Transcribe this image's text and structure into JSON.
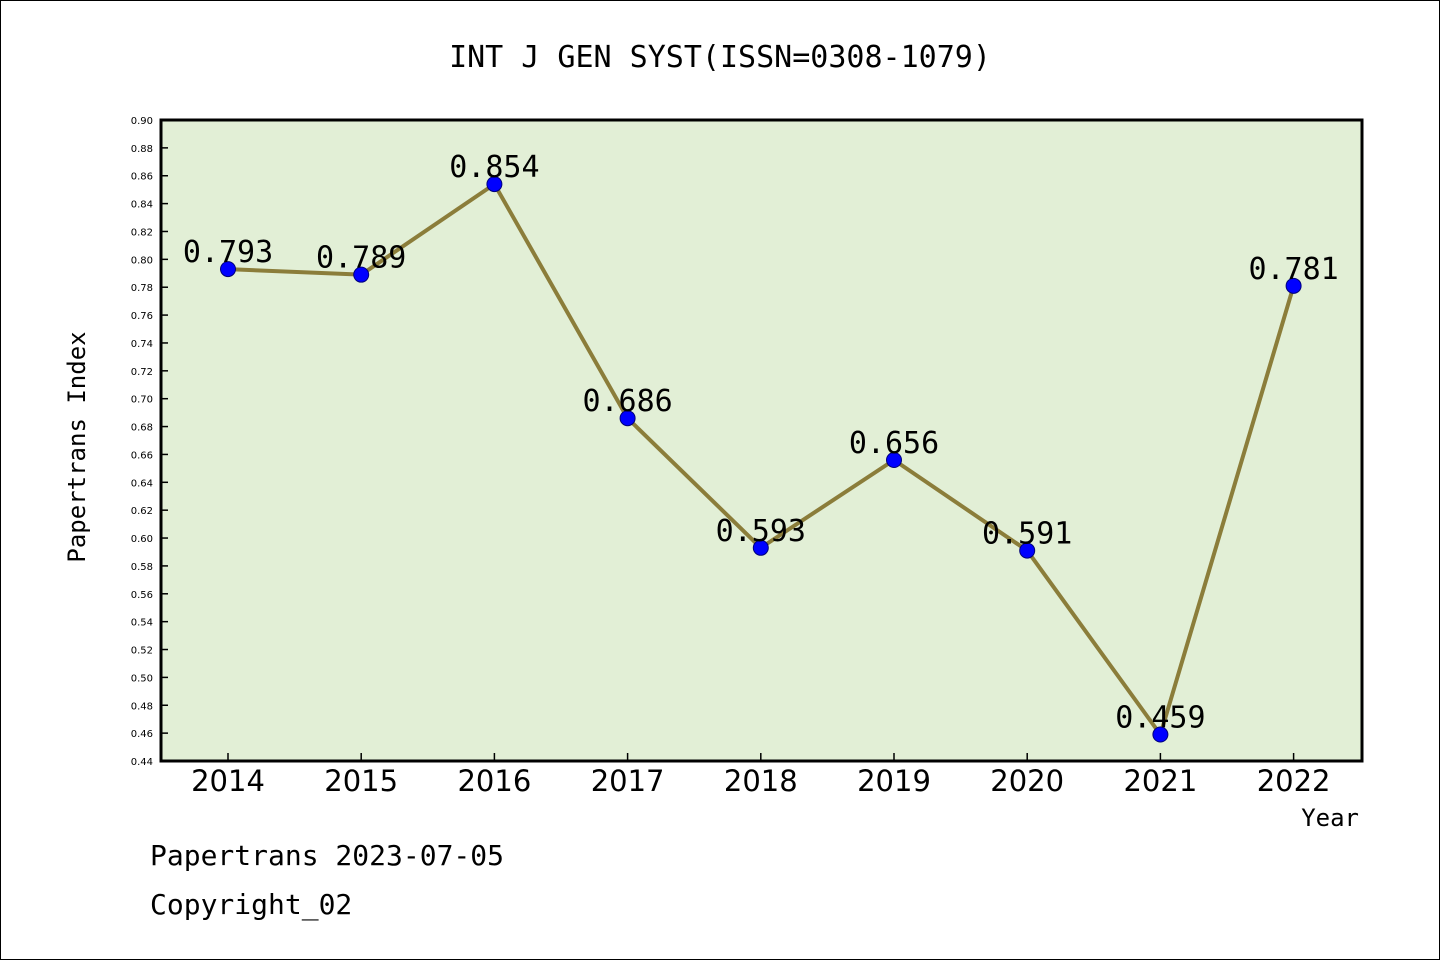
{
  "chart_data": {
    "type": "line",
    "title": "INT J GEN SYST(ISSN=0308-1079)",
    "xlabel": "Year",
    "ylabel": "Papertrans Index",
    "categories": [
      "2014",
      "2015",
      "2016",
      "2017",
      "2018",
      "2019",
      "2020",
      "2021",
      "2022"
    ],
    "series": [
      {
        "values": [
          0.793,
          0.789,
          0.854,
          0.686,
          0.593,
          0.656,
          0.591,
          0.459,
          0.781
        ],
        "data_labels": [
          "0.793",
          "0.789",
          "0.854",
          "0.686",
          "0.593",
          "0.656",
          "0.591",
          "0.459",
          "0.781"
        ]
      }
    ],
    "ylim": [
      0.44,
      0.9
    ],
    "yticks": [
      "0.44",
      "0.46",
      "0.48",
      "0.50",
      "0.52",
      "0.54",
      "0.56",
      "0.58",
      "0.60",
      "0.62",
      "0.64",
      "0.66",
      "0.68",
      "0.70",
      "0.72",
      "0.74",
      "0.76",
      "0.78",
      "0.80",
      "0.82",
      "0.84",
      "0.86",
      "0.88",
      "0.90"
    ],
    "grid": false,
    "colors": {
      "plot_background": "#e2efd6",
      "line": "#8b7d3a",
      "marker": "#0000ff"
    }
  },
  "footer": {
    "date_line": "Papertrans 2023-07-05",
    "copyright": "Copyright_02"
  }
}
